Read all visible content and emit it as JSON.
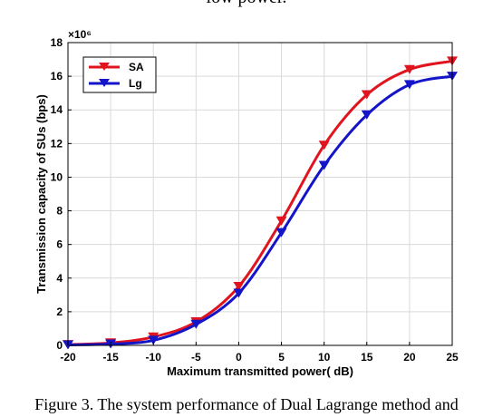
{
  "page": {
    "top_text": "low power.",
    "caption": "Figure 3. The system performance of Dual Lagrange method and"
  },
  "chart_data": {
    "type": "line",
    "title": "",
    "xlabel": "Maximum transmitted power( dB)",
    "ylabel": "Transmission capacity of SUs (bps)",
    "y_exponent": "×10⁶",
    "x": [
      -20,
      -15,
      -10,
      -5,
      0,
      5,
      10,
      15,
      20,
      25
    ],
    "x_ticks": [
      -20,
      -15,
      -10,
      -5,
      0,
      5,
      10,
      15,
      20,
      25
    ],
    "y_ticks": [
      0,
      2,
      4,
      6,
      8,
      10,
      12,
      14,
      16,
      18
    ],
    "xlim": [
      -20,
      25
    ],
    "ylim": [
      0,
      18
    ],
    "grid": true,
    "legend_position": "top-left",
    "series": [
      {
        "name": "SA",
        "color": "#e0141e",
        "marker": "triangle-down",
        "values": [
          0.05,
          0.15,
          0.5,
          1.4,
          3.5,
          7.4,
          11.9,
          14.9,
          16.4,
          16.9
        ]
      },
      {
        "name": "Lg",
        "color": "#1414c8",
        "marker": "triangle-down",
        "values": [
          0.03,
          0.08,
          0.3,
          1.25,
          3.1,
          6.7,
          10.7,
          13.7,
          15.5,
          16.0
        ]
      }
    ]
  }
}
